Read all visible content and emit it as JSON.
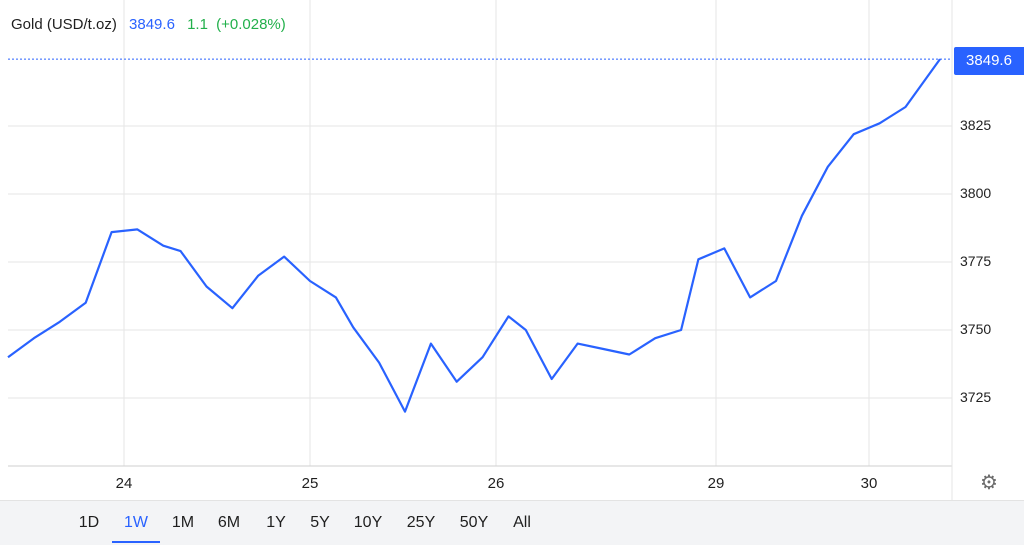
{
  "header": {
    "instrument": "Gold (USD/t.oz)",
    "price": "3849.6",
    "change": "1.1",
    "change_pct": "(+0.028%)"
  },
  "colors": {
    "line": "#2962ff",
    "price_text": "#2962ff",
    "change_text": "#22b04b",
    "grid": "#e6e6e6"
  },
  "price_tag": "3849.6",
  "settings_icon": "gear-icon",
  "toolbar": {
    "ranges": [
      "1D",
      "1W",
      "1M",
      "6M",
      "1Y",
      "5Y",
      "10Y",
      "25Y",
      "50Y",
      "All"
    ],
    "active": "1W"
  },
  "chart_data": {
    "type": "line",
    "title": "",
    "xlabel": "",
    "ylabel": "",
    "grid": true,
    "x_tick_labels": [
      "24",
      "25",
      "26",
      "29",
      "30"
    ],
    "y_tick_labels": [
      "3725",
      "3750",
      "3775",
      "3800",
      "3825"
    ],
    "ylim": [
      3700,
      3859
    ],
    "series": [
      {
        "name": "",
        "x": [
          0,
          0.15,
          0.3,
          0.45,
          0.6,
          0.75,
          0.9,
          1.0,
          1.15,
          1.3,
          1.45,
          1.6,
          1.75,
          1.9,
          2.0,
          2.15,
          2.3,
          2.45,
          2.6,
          2.75,
          2.9,
          3.0,
          3.15,
          3.3,
          3.45,
          3.6,
          3.75,
          3.9,
          4.0,
          4.15,
          4.3,
          4.45,
          4.6,
          4.75,
          4.9,
          5.05,
          5.2,
          5.4
        ],
        "values": [
          3740,
          3747,
          3753,
          3760,
          3786,
          3787,
          3781,
          3779,
          3766,
          3758,
          3770,
          3777,
          3768,
          3762,
          3751,
          3738,
          3720,
          3745,
          3731,
          3740,
          3755,
          3750,
          3732,
          3745,
          3743,
          3741,
          3747,
          3750,
          3776,
          3780,
          3762,
          3768,
          3792,
          3810,
          3822,
          3826,
          3832,
          3849.6
        ]
      }
    ]
  }
}
